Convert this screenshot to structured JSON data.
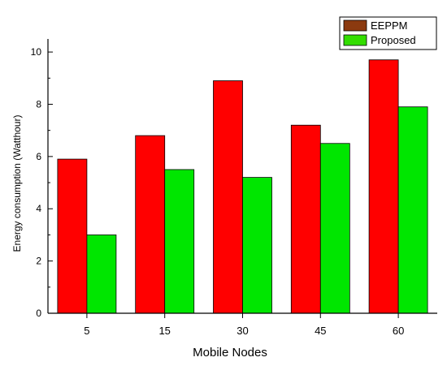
{
  "chart_data": {
    "type": "bar",
    "xlabel": "Mobile Nodes",
    "ylabel": "Energy consumption (Watthour)",
    "categories": [
      "5",
      "15",
      "30",
      "45",
      "60"
    ],
    "ylim": [
      0,
      10.5
    ],
    "yticks": [
      0,
      2,
      4,
      6,
      8,
      10
    ],
    "grid": false,
    "legend_position": "top-right",
    "series": [
      {
        "name": "EEPPM",
        "values": [
          5.9,
          6.8,
          8.9,
          7.2,
          9.7
        ],
        "color": "#ff0000",
        "legend_color": "#8b3a0f"
      },
      {
        "name": "Proposed",
        "values": [
          3.0,
          5.5,
          5.2,
          6.5,
          7.9
        ],
        "color": "#00e600",
        "legend_color": "#33dd00"
      }
    ]
  }
}
